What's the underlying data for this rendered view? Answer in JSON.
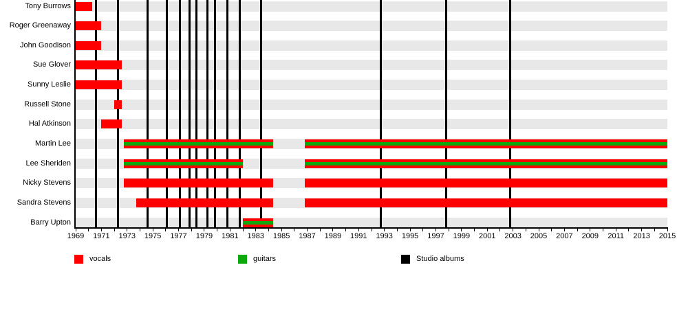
{
  "chart_data": {
    "type": "bar",
    "subtype": "membership-timeline-gantt",
    "title": "",
    "x_axis": {
      "start": 1969,
      "end": 2015,
      "minor_tick_step_years": 1,
      "label_step_years": 2,
      "tick_labels": [
        "1969",
        "1971",
        "1973",
        "1975",
        "1977",
        "1979",
        "1981",
        "1983",
        "1985",
        "1987",
        "1989",
        "1991",
        "1993",
        "1995",
        "1997",
        "1999",
        "2001",
        "2003",
        "2005",
        "2007",
        "2009",
        "2011",
        "2013",
        "2015"
      ]
    },
    "members": [
      {
        "name": "Tony Burrows",
        "segments": [
          {
            "start": 1969,
            "end": 1970.3,
            "roles": [
              "vocals"
            ]
          }
        ]
      },
      {
        "name": "Roger Greenaway",
        "segments": [
          {
            "start": 1969,
            "end": 1971.0,
            "roles": [
              "vocals"
            ]
          }
        ]
      },
      {
        "name": "John Goodison",
        "segments": [
          {
            "start": 1969,
            "end": 1971.0,
            "roles": [
              "vocals"
            ]
          }
        ]
      },
      {
        "name": "Sue Glover",
        "segments": [
          {
            "start": 1969,
            "end": 1972.6,
            "roles": [
              "vocals"
            ]
          }
        ]
      },
      {
        "name": "Sunny Leslie",
        "segments": [
          {
            "start": 1969,
            "end": 1972.6,
            "roles": [
              "vocals"
            ]
          }
        ]
      },
      {
        "name": "Russell Stone",
        "segments": [
          {
            "start": 1972.0,
            "end": 1972.6,
            "roles": [
              "vocals"
            ]
          }
        ]
      },
      {
        "name": "Hal Atkinson",
        "segments": [
          {
            "start": 1971.0,
            "end": 1972.6,
            "roles": [
              "vocals"
            ]
          }
        ]
      },
      {
        "name": "Martin Lee",
        "segments": [
          {
            "start": 1972.75,
            "end": 1984.35,
            "roles": [
              "vocals",
              "guitars"
            ]
          },
          {
            "start": 1986.8,
            "end": 2015,
            "roles": [
              "vocals",
              "guitars"
            ]
          }
        ]
      },
      {
        "name": "Lee Sheriden",
        "segments": [
          {
            "start": 1972.75,
            "end": 1982.0,
            "roles": [
              "vocals",
              "guitars"
            ]
          },
          {
            "start": 1986.8,
            "end": 2015,
            "roles": [
              "vocals",
              "guitars"
            ]
          }
        ]
      },
      {
        "name": "Nicky Stevens",
        "segments": [
          {
            "start": 1972.75,
            "end": 1984.35,
            "roles": [
              "vocals"
            ]
          },
          {
            "start": 1986.8,
            "end": 2015,
            "roles": [
              "vocals"
            ]
          }
        ]
      },
      {
        "name": "Sandra Stevens",
        "segments": [
          {
            "start": 1973.7,
            "end": 1984.35,
            "roles": [
              "vocals"
            ]
          },
          {
            "start": 1986.8,
            "end": 2015,
            "roles": [
              "vocals"
            ]
          }
        ]
      },
      {
        "name": "Barry Upton",
        "segments": [
          {
            "start": 1982.0,
            "end": 1984.35,
            "roles": [
              "vocals",
              "guitars"
            ]
          }
        ]
      }
    ],
    "studio_albums_years": [
      1970.6,
      1972.3,
      1974.6,
      1976.1,
      1977.1,
      1977.85,
      1978.4,
      1979.25,
      1979.85,
      1980.8,
      1981.75,
      1983.4,
      1992.7,
      1997.8,
      2002.8
    ],
    "legend": [
      {
        "label": "vocals",
        "color": "#FF0000"
      },
      {
        "label": "guitars",
        "color": "#0CA80C"
      },
      {
        "label": "Studio albums",
        "color": "#000000"
      }
    ],
    "colors": {
      "vocals": "#FF0000",
      "guitars": "#0CA80C",
      "albums": "#000000",
      "row_stripe": "#E8E8E8",
      "background": "#FFFFFF"
    },
    "layout_hints": {
      "grid": false,
      "legend_position": "bottom",
      "bars_drawn_over_album_lines": true
    }
  }
}
